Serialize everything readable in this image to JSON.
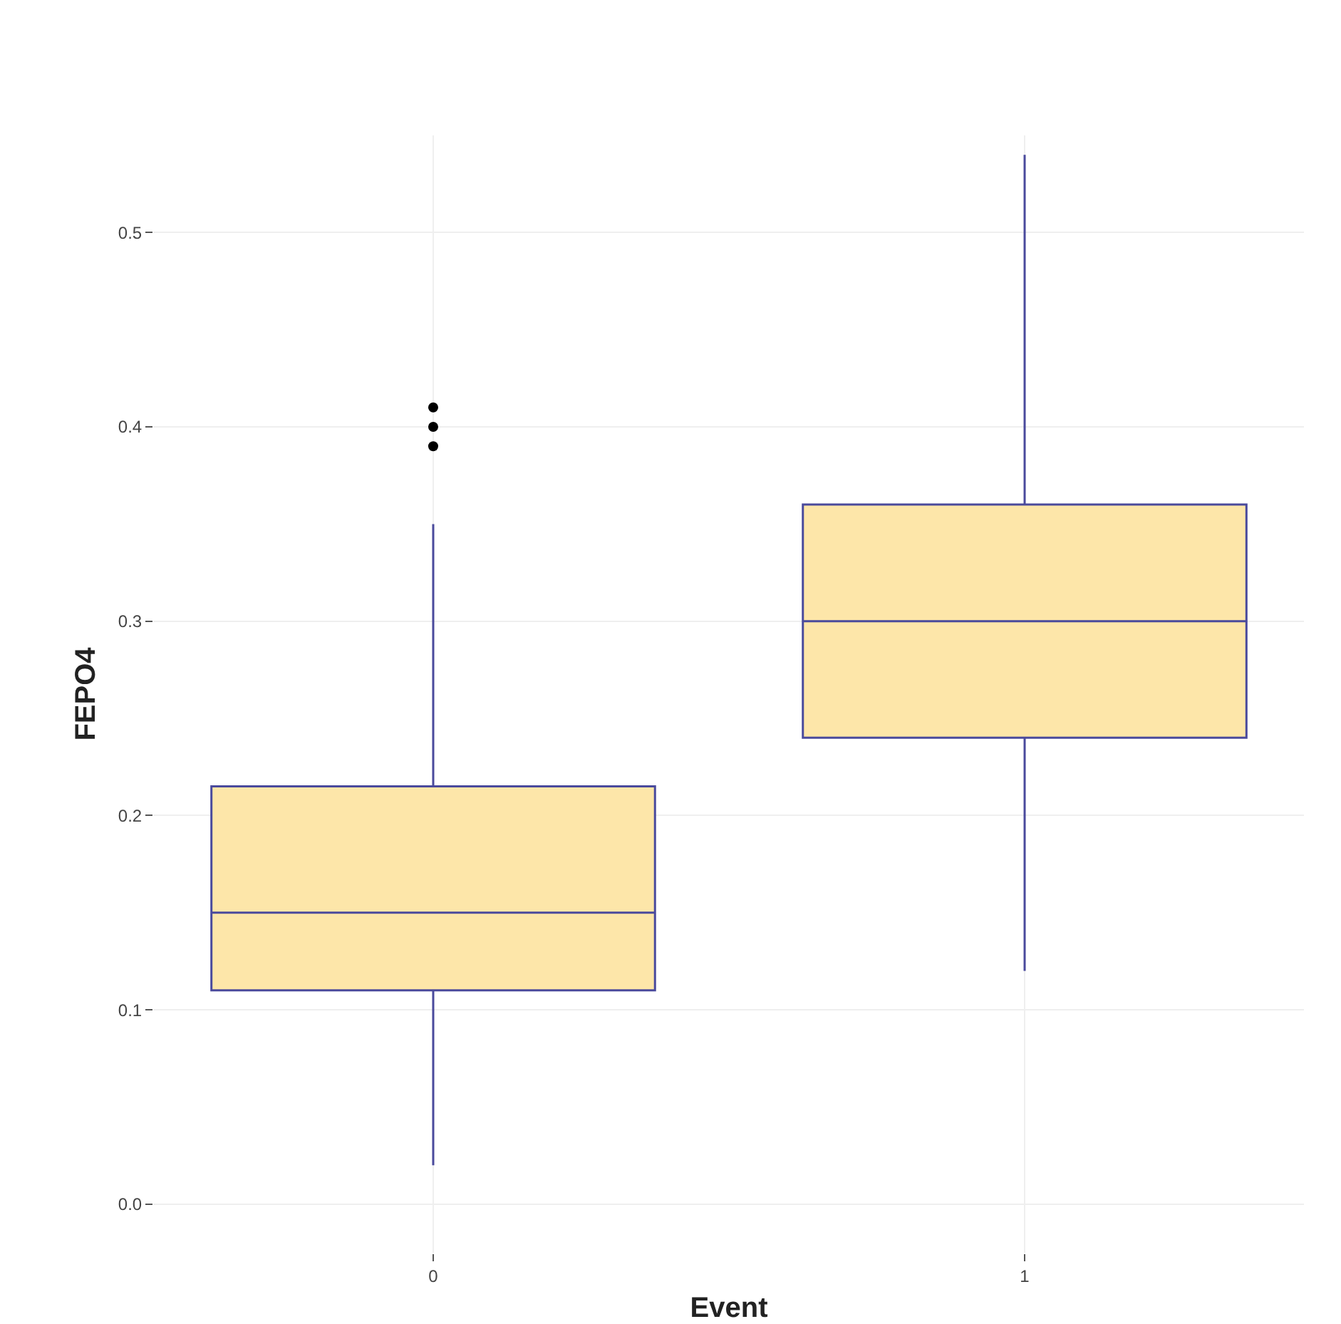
{
  "chart_data": {
    "type": "box",
    "xlabel": "Event",
    "ylabel": "FEPO4",
    "categories": [
      "0",
      "1"
    ],
    "boxes": [
      {
        "low": 0.02,
        "q1": 0.11,
        "median": 0.15,
        "q3": 0.215,
        "high": 0.35,
        "outliers": [
          0.39,
          0.4,
          0.41
        ]
      },
      {
        "low": 0.12,
        "q1": 0.24,
        "median": 0.3,
        "q3": 0.36,
        "high": 0.54
      }
    ],
    "color": "#fde6a9",
    "ylim": [
      -0.025,
      0.55
    ],
    "yticks": [
      {
        "value": 0,
        "label": "0.0"
      },
      {
        "value": 0.1,
        "label": "0.1"
      },
      {
        "value": 0.2,
        "label": "0.2"
      },
      {
        "value": 0.3,
        "label": "0.3"
      },
      {
        "value": 0.4,
        "label": "0.4"
      },
      {
        "value": 0.5,
        "label": "0.5"
      }
    ],
    "grid": true
  }
}
